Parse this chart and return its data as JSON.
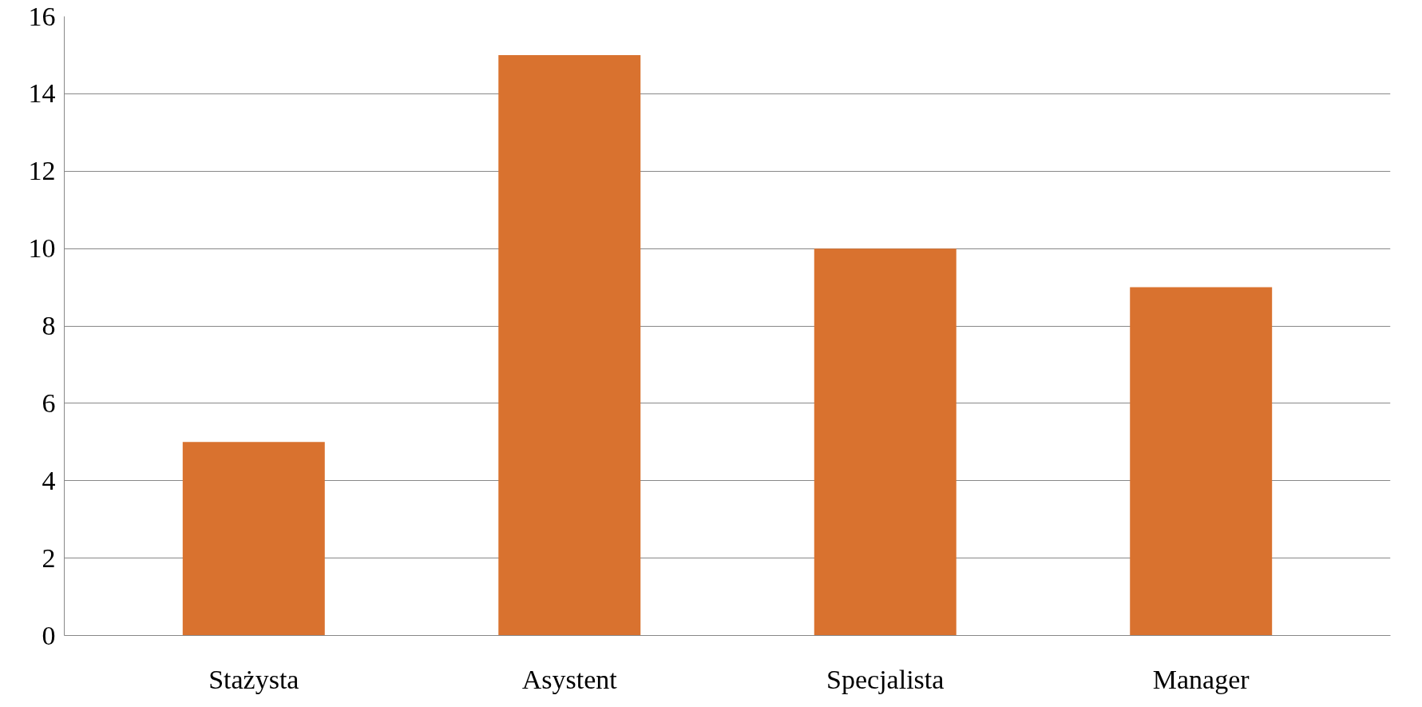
{
  "chart_data": {
    "type": "bar",
    "categories": [
      "Stażysta",
      "Asystent",
      "Specjalista",
      "Manager"
    ],
    "values": [
      5,
      15,
      10,
      9
    ],
    "color": "#d9722f",
    "ylim": [
      0,
      16
    ],
    "yticks": [
      0,
      2,
      4,
      6,
      8,
      10,
      12,
      14,
      16
    ],
    "grid": "y"
  }
}
